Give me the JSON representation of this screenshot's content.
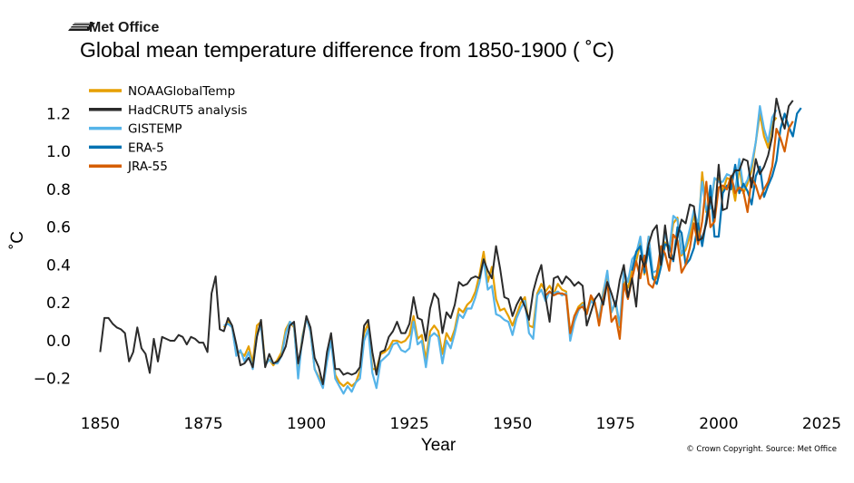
{
  "brand": {
    "name": "Met Office",
    "logo_icon": "met-office-wave-logo-icon"
  },
  "copyright": "© Crown Copyright. Source: Met Office",
  "chart_data": {
    "type": "line",
    "title": "Global mean temperature difference from 1850-1900 ( ˚C)",
    "xlabel": "Year",
    "ylabel": "˚C",
    "xlim": [
      1845.5,
      2026
    ],
    "ylim": [
      -0.345,
      1.36
    ],
    "xticks": [
      1850,
      1875,
      1900,
      1925,
      1950,
      1975,
      2000,
      2025
    ],
    "xtick_labels": [
      "1850",
      "1875",
      "1900",
      "1925",
      "1950",
      "1975",
      "2000",
      "2025"
    ],
    "yticks": [
      -0.2,
      0.0,
      0.2,
      0.4,
      0.6,
      0.8,
      1.0,
      1.2
    ],
    "ytick_labels": [
      "−0.2",
      "0.0",
      "0.2",
      "0.4",
      "0.6",
      "0.8",
      "1.0",
      "1.2"
    ],
    "grid": false,
    "legend_position": "top-left",
    "series": [
      {
        "name": "NOAAGlobalTemp",
        "color": "#e69f00",
        "x_start": 1880,
        "values": [
          0.07,
          0.1,
          0.07,
          -0.07,
          -0.06,
          -0.08,
          -0.03,
          -0.12,
          0.08,
          0.1,
          -0.12,
          -0.1,
          -0.13,
          -0.1,
          -0.06,
          0.06,
          0.1,
          0.07,
          -0.18,
          0.02,
          0.12,
          0.05,
          -0.15,
          -0.19,
          -0.24,
          -0.09,
          0.02,
          -0.18,
          -0.22,
          -0.24,
          -0.22,
          -0.24,
          -0.22,
          -0.16,
          0.04,
          0.09,
          -0.15,
          -0.15,
          -0.07,
          -0.06,
          -0.04,
          0.0,
          0.0,
          -0.01,
          0.0,
          0.03,
          0.13,
          0.01,
          0.03,
          -0.1,
          0.05,
          0.08,
          0.05,
          -0.07,
          0.04,
          0.0,
          0.06,
          0.17,
          0.15,
          0.19,
          0.21,
          0.26,
          0.35,
          0.47,
          0.31,
          0.39,
          0.22,
          0.16,
          0.17,
          0.13,
          0.08,
          0.14,
          0.2,
          0.23,
          0.08,
          0.07,
          0.25,
          0.3,
          0.26,
          0.29,
          0.25,
          0.3,
          0.27,
          0.26,
          0.04,
          0.13,
          0.18,
          0.2,
          0.15,
          0.23,
          0.19,
          0.11,
          0.26,
          0.35,
          0.15,
          0.2,
          0.07,
          0.31,
          0.28,
          0.37,
          0.42,
          0.52,
          0.35,
          0.55,
          0.34,
          0.33,
          0.43,
          0.52,
          0.48,
          0.62,
          0.65,
          0.45,
          0.48,
          0.55,
          0.67,
          0.55,
          0.89,
          0.68,
          0.7,
          0.85,
          0.86,
          0.79,
          0.86,
          0.85,
          0.74,
          0.92,
          0.78,
          0.83,
          0.9,
          1.05,
          1.2,
          1.08,
          1.02,
          1.15,
          1.18
        ]
      },
      {
        "name": "HadCRUT5 analysis",
        "color": "#2b2b2b",
        "x_start": 1850,
        "values": [
          -0.06,
          0.12,
          0.12,
          0.09,
          0.07,
          0.06,
          0.04,
          -0.11,
          -0.06,
          0.07,
          -0.04,
          -0.07,
          -0.17,
          0.01,
          -0.11,
          0.02,
          0.01,
          0.0,
          0.0,
          0.03,
          0.02,
          -0.02,
          0.02,
          0.01,
          -0.01,
          -0.01,
          -0.06,
          0.25,
          0.34,
          0.06,
          0.05,
          0.12,
          0.08,
          -0.02,
          -0.13,
          -0.12,
          -0.09,
          -0.14,
          0.02,
          0.11,
          -0.14,
          -0.07,
          -0.12,
          -0.11,
          -0.08,
          -0.03,
          0.08,
          0.1,
          -0.12,
          -0.01,
          0.13,
          0.07,
          -0.09,
          -0.14,
          -0.23,
          -0.06,
          0.04,
          -0.15,
          -0.15,
          -0.18,
          -0.17,
          -0.18,
          -0.17,
          -0.14,
          0.08,
          0.11,
          -0.06,
          -0.18,
          -0.06,
          -0.05,
          0.02,
          0.05,
          0.1,
          0.04,
          0.04,
          0.09,
          0.23,
          0.12,
          0.11,
          0.0,
          0.17,
          0.25,
          0.22,
          0.04,
          0.15,
          0.12,
          0.19,
          0.31,
          0.29,
          0.3,
          0.33,
          0.34,
          0.33,
          0.43,
          0.37,
          0.33,
          0.5,
          0.38,
          0.23,
          0.22,
          0.13,
          0.19,
          0.23,
          0.18,
          0.11,
          0.26,
          0.34,
          0.4,
          0.23,
          0.1,
          0.33,
          0.34,
          0.3,
          0.34,
          0.32,
          0.29,
          0.31,
          0.29,
          0.08,
          0.15,
          0.22,
          0.25,
          0.19,
          0.31,
          0.25,
          0.18,
          0.32,
          0.4,
          0.23,
          0.33,
          0.18,
          0.45,
          0.39,
          0.51,
          0.58,
          0.61,
          0.4,
          0.61,
          0.44,
          0.43,
          0.55,
          0.64,
          0.62,
          0.72,
          0.71,
          0.53,
          0.54,
          0.62,
          0.76,
          0.65,
          0.93,
          0.69,
          0.7,
          0.86,
          0.9,
          0.9,
          0.96,
          0.95,
          0.81,
          0.96,
          0.88,
          0.92,
          0.98,
          1.08,
          1.28,
          1.19,
          1.12,
          1.24,
          1.27
        ]
      },
      {
        "name": "GISTEMP",
        "color": "#56b4e9",
        "x_start": 1880,
        "values": [
          0.08,
          0.09,
          0.07,
          -0.08,
          -0.05,
          -0.11,
          -0.06,
          -0.15,
          0.03,
          0.08,
          -0.13,
          -0.1,
          -0.12,
          -0.12,
          -0.08,
          0.04,
          0.1,
          0.08,
          -0.2,
          0.01,
          0.12,
          0.05,
          -0.15,
          -0.2,
          -0.25,
          -0.11,
          0.0,
          -0.2,
          -0.24,
          -0.28,
          -0.24,
          -0.27,
          -0.22,
          -0.2,
          0.0,
          0.06,
          -0.17,
          -0.25,
          -0.11,
          -0.09,
          -0.07,
          -0.02,
          -0.01,
          -0.05,
          -0.06,
          -0.04,
          0.1,
          -0.02,
          0.0,
          -0.14,
          0.02,
          0.04,
          0.02,
          -0.12,
          0.0,
          -0.04,
          0.04,
          0.14,
          0.12,
          0.17,
          0.17,
          0.23,
          0.31,
          0.43,
          0.27,
          0.29,
          0.14,
          0.13,
          0.11,
          0.1,
          0.03,
          0.12,
          0.17,
          0.21,
          0.04,
          0.01,
          0.24,
          0.27,
          0.21,
          0.26,
          0.25,
          0.26,
          0.24,
          0.25,
          0.0,
          0.1,
          0.16,
          0.19,
          0.14,
          0.21,
          0.19,
          0.11,
          0.25,
          0.37,
          0.15,
          0.21,
          0.08,
          0.37,
          0.31,
          0.43,
          0.46,
          0.55,
          0.36,
          0.55,
          0.36,
          0.37,
          0.45,
          0.57,
          0.48,
          0.66,
          0.64,
          0.46,
          0.5,
          0.59,
          0.69,
          0.61,
          0.84,
          0.69,
          0.7,
          0.86,
          0.84,
          0.84,
          0.88,
          0.87,
          0.79,
          0.96,
          0.81,
          0.85,
          0.93,
          1.05,
          1.24,
          1.12,
          1.05,
          1.18,
          1.22
        ]
      },
      {
        "name": "ERA-5",
        "color": "#0072b2",
        "x_start": 1979,
        "values": [
          0.37,
          0.47,
          0.5,
          0.36,
          0.49,
          0.33,
          0.3,
          0.39,
          0.51,
          0.5,
          0.42,
          0.6,
          0.57,
          0.4,
          0.43,
          0.49,
          0.62,
          0.5,
          0.64,
          0.82,
          0.55,
          0.55,
          0.78,
          0.82,
          0.8,
          0.93,
          0.78,
          0.83,
          0.79,
          0.72,
          0.87,
          0.92,
          0.76,
          0.82,
          0.87,
          0.95,
          1.12,
          1.2,
          1.13,
          1.08,
          1.2,
          1.23
        ]
      },
      {
        "name": "JRA-55",
        "color": "#d55e00",
        "x_start": 1958,
        "values": [
          0.24,
          0.26,
          0.24,
          0.25,
          0.25,
          0.24,
          0.04,
          0.13,
          0.17,
          0.18,
          0.14,
          0.24,
          0.2,
          0.08,
          0.22,
          0.31,
          0.1,
          0.13,
          0.01,
          0.3,
          0.22,
          0.33,
          0.42,
          0.33,
          0.45,
          0.3,
          0.28,
          0.35,
          0.5,
          0.46,
          0.37,
          0.56,
          0.53,
          0.36,
          0.4,
          0.49,
          0.62,
          0.51,
          0.63,
          0.84,
          0.6,
          0.63,
          0.81,
          0.82,
          0.8,
          0.87,
          0.78,
          0.81,
          0.79,
          0.68,
          0.86,
          0.82,
          0.75,
          0.8,
          0.84,
          0.92,
          1.12,
          1.07,
          1.0,
          1.12,
          1.16
        ]
      }
    ]
  }
}
